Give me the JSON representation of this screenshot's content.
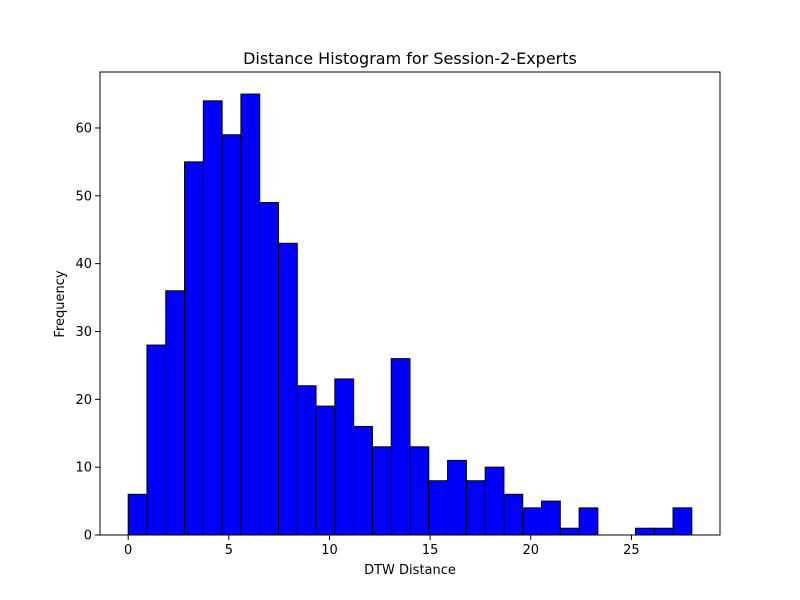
{
  "chart_data": {
    "type": "bar",
    "title": "Distance Histogram for Session-2-Experts",
    "xlabel": "DTW Distance",
    "ylabel": "Frequency",
    "xlim": [
      -1.4,
      29.4
    ],
    "ylim": [
      0,
      68.25
    ],
    "xticks": [
      0,
      5,
      10,
      15,
      20,
      25
    ],
    "yticks": [
      0,
      10,
      20,
      30,
      40,
      50,
      60
    ],
    "bin_edges": [
      0,
      0.9333,
      1.8667,
      2.8,
      3.7333,
      4.6667,
      5.6,
      6.5333,
      7.4667,
      8.4,
      9.3333,
      10.2667,
      11.2,
      12.1333,
      13.0667,
      14.0,
      14.9333,
      15.8667,
      16.8,
      17.7333,
      18.6667,
      19.6,
      20.5333,
      21.4667,
      22.4,
      23.3333,
      24.2667,
      25.2,
      26.1333,
      27.0667,
      28.0
    ],
    "values": [
      6,
      28,
      36,
      55,
      64,
      59,
      65,
      49,
      43,
      22,
      19,
      23,
      16,
      13,
      26,
      13,
      8,
      11,
      8,
      10,
      6,
      4,
      5,
      1,
      4,
      0,
      0,
      1,
      1,
      4
    ],
    "bar_color": "#0000ff",
    "edge_color": "#000000",
    "grid": false,
    "legend": false
  }
}
